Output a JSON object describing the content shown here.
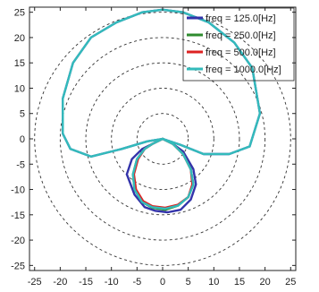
{
  "chart_data": {
    "type": "line",
    "coordinate_system": "polar-pattern plotted on cartesian axes",
    "xlim": [
      -26,
      26
    ],
    "ylim": [
      -26,
      26
    ],
    "xticks": [
      -25,
      -20,
      -15,
      -10,
      -5,
      0,
      5,
      10,
      15,
      20,
      25
    ],
    "yticks": [
      25,
      20,
      15,
      10,
      5,
      0,
      -5,
      -10,
      -15,
      -20,
      -25
    ],
    "grid": {
      "style": "dashed concentric circles",
      "radii": [
        5,
        10,
        15,
        20,
        25
      ],
      "color": "#333333"
    },
    "legend": {
      "placement": "top-right",
      "entries": [
        {
          "label": "freq = 125.0[Hz]",
          "color": "#3333aa"
        },
        {
          "label": "freq = 250.0[Hz]",
          "color": "#2e8b2e"
        },
        {
          "label": "freq = 500.0[Hz]",
          "color": "#dd2222"
        },
        {
          "label": "freq = 1000.0[Hz]",
          "color": "#33bbbb"
        }
      ]
    },
    "series": [
      {
        "name": "freq = 125.0[Hz]",
        "color": "#3333aa",
        "x": [
          0,
          3.5,
          8,
          13,
          17,
          19,
          17.5,
          14,
          9,
          4,
          0,
          -4,
          -9,
          -14,
          -17.5,
          -19.5,
          -19.5,
          -18,
          -14,
          -8,
          -3,
          0
        ],
        "y": [
          0,
          -1.2,
          -3,
          -3,
          -1.5,
          5,
          14,
          19,
          23,
          25,
          25.5,
          25,
          23,
          20,
          15,
          8,
          1,
          -2,
          -3.5,
          -2,
          -0.5,
          0
        ]
      },
      {
        "name": "freq = 125.0[Hz]",
        "color": "#3333aa",
        "x": [
          0,
          2,
          4,
          6,
          6.5,
          5.5,
          3.5,
          1,
          -1.5,
          -3.5,
          -5.5,
          -7,
          -6,
          -4,
          -2,
          0
        ],
        "y": [
          0,
          -1,
          -2.5,
          -6,
          -9,
          -12,
          -14,
          -14.5,
          -14.2,
          -13.5,
          -11,
          -7,
          -4,
          -2,
          -1,
          0
        ]
      },
      {
        "name": "freq = 250.0[Hz]",
        "color": "#2e8b2e",
        "x": [
          0,
          2,
          4,
          5.5,
          6,
          5,
          3,
          0.5,
          -2,
          -4,
          -5.5,
          -5.8,
          -5,
          -3.5,
          -2,
          0
        ],
        "y": [
          0,
          -1,
          -3,
          -6,
          -9,
          -11.5,
          -13.2,
          -14,
          -13.6,
          -12.5,
          -10,
          -7,
          -4,
          -2,
          -1,
          0
        ]
      },
      {
        "name": "freq = 500.0[Hz]",
        "color": "#dd2222",
        "x": [
          0,
          2,
          4,
          5.5,
          5.8,
          5,
          3,
          0.5,
          -2,
          -3.8,
          -5.2,
          -5.6,
          -4.8,
          -3.5,
          -2,
          0
        ],
        "y": [
          0,
          -1,
          -3,
          -6,
          -9,
          -11.5,
          -13,
          -13.6,
          -13.3,
          -12.3,
          -10,
          -7,
          -4,
          -2,
          -1,
          0
        ]
      },
      {
        "name": "freq = 1000.0[Hz]",
        "color": "#33bbbb",
        "x": [
          0,
          3.5,
          8,
          13,
          17,
          19,
          17.5,
          14,
          9,
          4,
          0,
          -4,
          -9,
          -14,
          -17.5,
          -19.5,
          -19.5,
          -18,
          -14,
          -8,
          -3,
          0
        ],
        "y": [
          0,
          -1.2,
          -3,
          -3,
          -1.5,
          5,
          14,
          19,
          23,
          25,
          25.5,
          25,
          23,
          20,
          15,
          8,
          1,
          -2,
          -3.5,
          -2,
          -0.5,
          0
        ]
      },
      {
        "name": "freq = 1000.0[Hz]",
        "color": "#33bbbb",
        "x": [
          0,
          2,
          4,
          5.5,
          6,
          5,
          3,
          0.5,
          -2,
          -4,
          -5.5,
          -5.8,
          -5,
          -3.5,
          -2,
          0
        ],
        "y": [
          0,
          -1,
          -3,
          -6,
          -9,
          -11.5,
          -13.2,
          -13.8,
          -13.5,
          -12.5,
          -10,
          -7,
          -4,
          -2,
          -1,
          0
        ]
      }
    ]
  }
}
